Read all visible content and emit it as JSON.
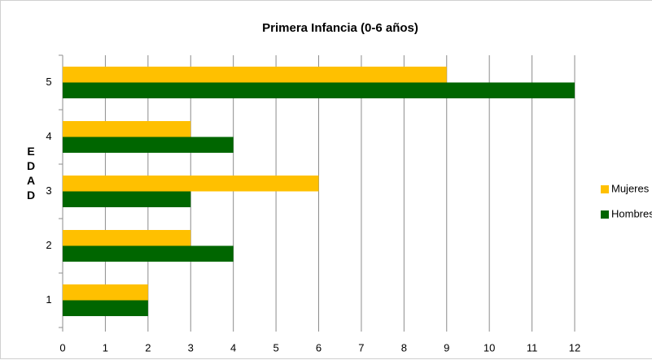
{
  "chart_data": {
    "type": "barh",
    "title": "Primera Infancia (0-6 años)",
    "y_label": "EDAD",
    "categories": [
      "1",
      "2",
      "3",
      "4",
      "5"
    ],
    "series": [
      {
        "name": "Mujeres",
        "color": "#ffc000",
        "values": [
          2,
          3,
          6,
          3,
          9
        ]
      },
      {
        "name": "Hombres",
        "color": "#006600",
        "values": [
          2,
          4,
          3,
          4,
          12
        ]
      }
    ],
    "xlim": [
      0,
      12
    ],
    "xticks": [
      0,
      1,
      2,
      3,
      4,
      5,
      6,
      7,
      8,
      9,
      10,
      11,
      12
    ],
    "grid": true,
    "legend": "right"
  }
}
